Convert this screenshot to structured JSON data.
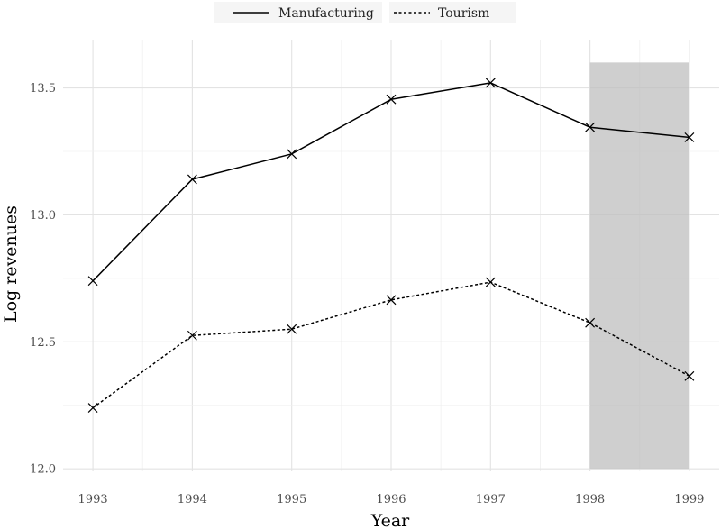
{
  "chart_data": {
    "type": "line",
    "xlabel": "Year",
    "ylabel": "Log revenues",
    "x": [
      1993,
      1994,
      1995,
      1996,
      1997,
      1998,
      1999
    ],
    "x_tick_labels": [
      "1993",
      "1994",
      "1995",
      "1996",
      "1997",
      "1998",
      "1999"
    ],
    "y_ticks": [
      12.0,
      12.5,
      13.0,
      13.5
    ],
    "y_tick_labels": [
      "12.0",
      "12.5",
      "13.0",
      "13.5"
    ],
    "xlim": [
      1992.7,
      1999.3
    ],
    "ylim": [
      11.99,
      13.69
    ],
    "grid": true,
    "legend_position": "top",
    "marker": "x",
    "series": [
      {
        "name": "Manufacturing",
        "line_style": "solid",
        "color": "#000000",
        "values": [
          12.74,
          13.14,
          13.24,
          13.455,
          13.52,
          13.345,
          13.305
        ]
      },
      {
        "name": "Tourism",
        "line_style": "dotted",
        "color": "#000000",
        "values": [
          12.24,
          12.525,
          12.55,
          12.665,
          12.735,
          12.575,
          12.365
        ]
      }
    ],
    "shaded_region": {
      "x_start": 1998,
      "x_end": 1999,
      "y_start": 12.0,
      "y_end": 13.6,
      "color": "#bfbfbf"
    }
  }
}
